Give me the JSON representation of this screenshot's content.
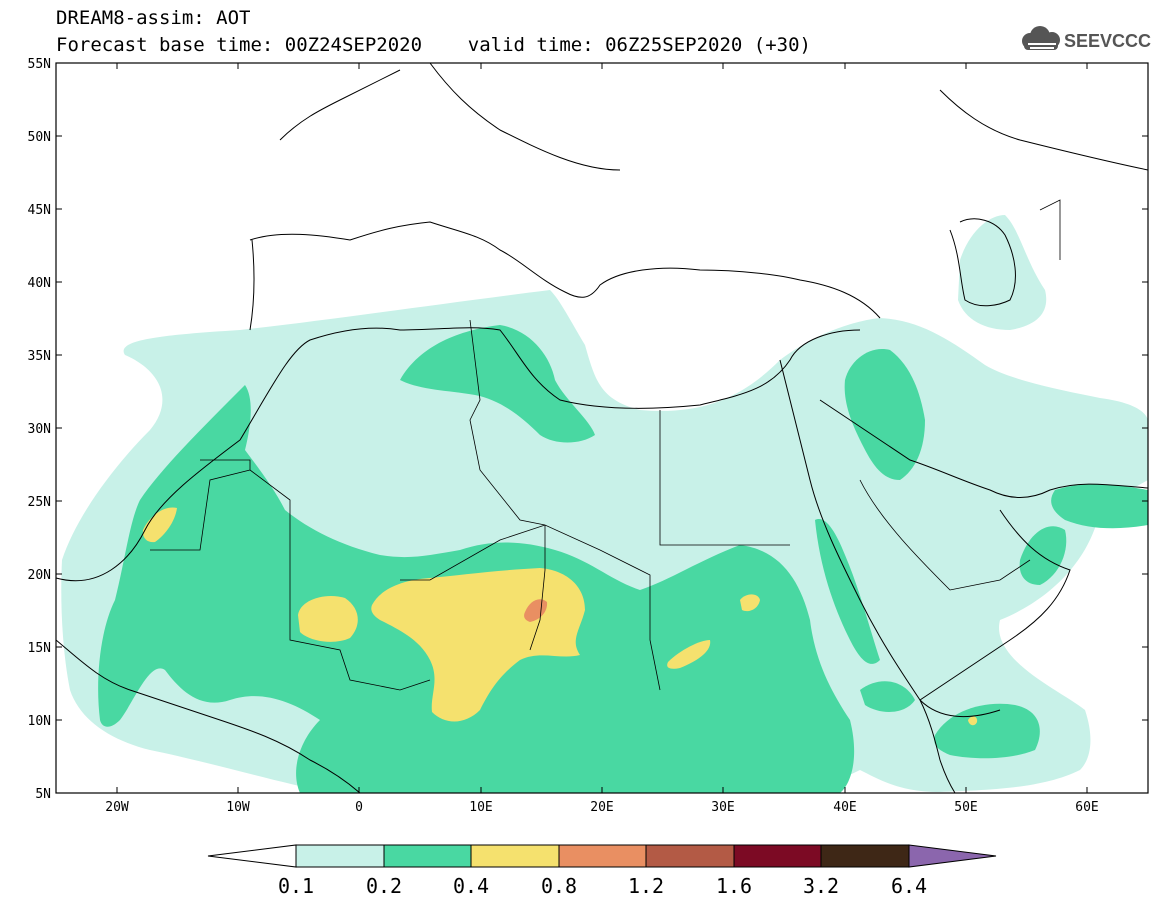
{
  "header": {
    "line1": "DREAM8-assim: AOT",
    "line2": "Forecast base time: 00Z24SEP2020    valid time: 06Z25SEP2020 (+30)"
  },
  "logo": {
    "text": "SEEVCCC",
    "icon": "cloud-icon",
    "color": "#555555"
  },
  "axes": {
    "lat_labels": [
      "55N",
      "50N",
      "45N",
      "40N",
      "35N",
      "30N",
      "25N",
      "20N",
      "15N",
      "10N",
      "5N"
    ],
    "lon_labels": [
      "20W",
      "10W",
      "0",
      "10E",
      "20E",
      "30E",
      "40E",
      "50E",
      "60E"
    ]
  },
  "colorbar": {
    "levels": [
      "0.1",
      "0.2",
      "0.4",
      "0.8",
      "1.2",
      "1.6",
      "3.2",
      "6.4"
    ],
    "colors": [
      "#c8f1e8",
      "#49d8a2",
      "#f5e16e",
      "#e98f62",
      "#b35a45",
      "#7c0a24",
      "#3e2716",
      "#8b66ad"
    ]
  },
  "map_colors": {
    "land_line": "#000000",
    "background": "#ffffff"
  }
}
